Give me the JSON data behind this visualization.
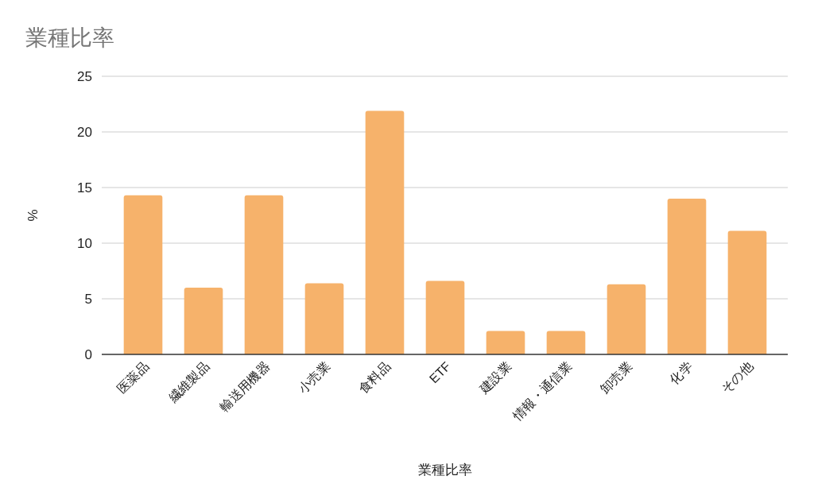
{
  "chart_data": {
    "type": "bar",
    "title": "業種比率",
    "xlabel": "業種比率",
    "ylabel": "%",
    "categories": [
      "医薬品",
      "繊維製品",
      "輸送用機器",
      "小売業",
      "食料品",
      "ETF",
      "建設業",
      "情報・通信業",
      "卸売業",
      "化学",
      "その他"
    ],
    "values": [
      14.3,
      6.0,
      14.3,
      6.4,
      21.9,
      6.6,
      2.1,
      2.1,
      6.3,
      14.0,
      11.1
    ],
    "color": "#f6b26b",
    "ylim": [
      0,
      25
    ],
    "yticks": [
      0,
      5,
      10,
      15,
      20,
      25
    ],
    "grid": "y"
  }
}
